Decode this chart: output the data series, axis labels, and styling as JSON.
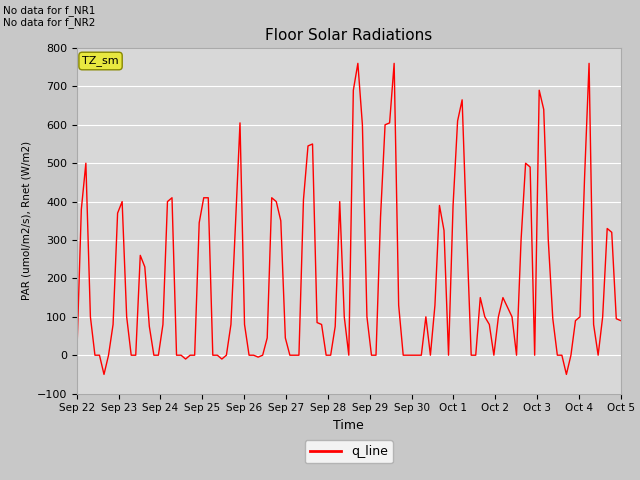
{
  "title": "Floor Solar Radiations",
  "ylabel": "PAR (umol/m2/s), Rnet (W/m2)",
  "xlabel": "Time",
  "ylim": [
    -100,
    800
  ],
  "yticks": [
    -100,
    0,
    100,
    200,
    300,
    400,
    500,
    600,
    700,
    800
  ],
  "xtick_labels": [
    "Sep 22",
    "Sep 23",
    "Sep 24",
    "Sep 25",
    "Sep 26",
    "Sep 27",
    "Sep 28",
    "Sep 29",
    "Sep 30",
    "Oct 1",
    "Oct 2",
    "Oct 3",
    "Oct 4",
    "Oct 5"
  ],
  "annotation_text": "No data for f_NR1\nNo data for f_NR2",
  "legend_label": "q_line",
  "line_color": "red",
  "TZ_label": "TZ_sm",
  "fig_bg": "#c8c8c8",
  "ax_bg": "#d8d8d8",
  "q_line_data": [
    0,
    380,
    500,
    100,
    0,
    0,
    -50,
    0,
    80,
    370,
    400,
    100,
    0,
    0,
    260,
    230,
    75,
    0,
    0,
    80,
    400,
    410,
    0,
    0,
    -10,
    0,
    0,
    345,
    410,
    410,
    0,
    0,
    -10,
    0,
    80,
    340,
    605,
    80,
    0,
    0,
    -5,
    0,
    45,
    410,
    400,
    350,
    45,
    0,
    0,
    0,
    405,
    545,
    550,
    85,
    80,
    0,
    0,
    75,
    400,
    100,
    0,
    690,
    760,
    600,
    100,
    0,
    0,
    360,
    600,
    605,
    760,
    130,
    0,
    0,
    0,
    0,
    0,
    100,
    0,
    130,
    390,
    325,
    0,
    390,
    610,
    665,
    320,
    0,
    0,
    150,
    100,
    80,
    0,
    100,
    150,
    125,
    100,
    0,
    300,
    500,
    490,
    0,
    690,
    640,
    300,
    95,
    0,
    0,
    -50,
    0,
    90,
    100,
    460,
    760,
    80,
    0,
    100,
    330,
    320,
    95,
    90
  ]
}
